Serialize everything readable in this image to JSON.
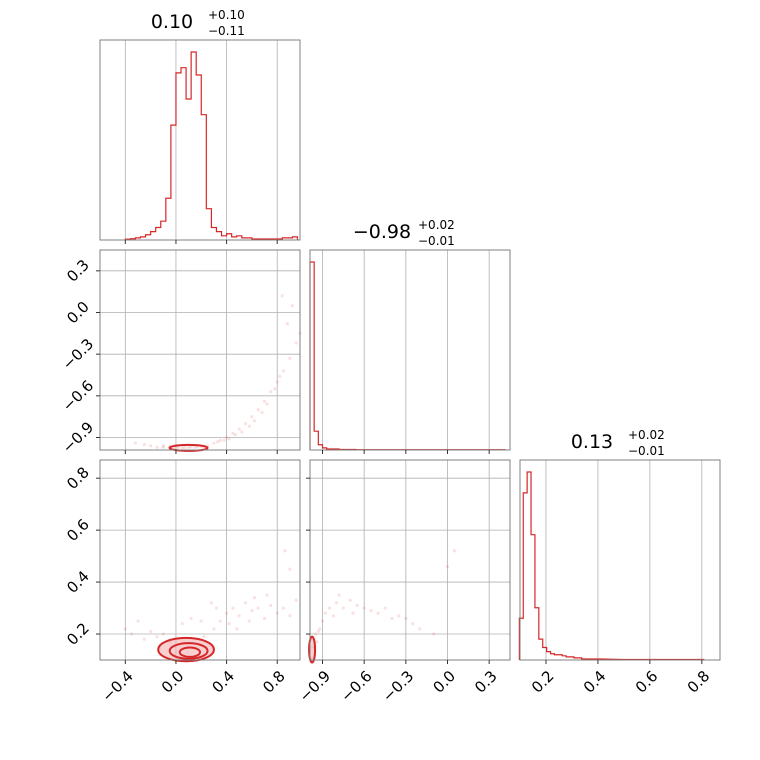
{
  "chart_data": [
    {
      "type": "histogram",
      "panel": "diag-1",
      "title": {
        "median": "0.10",
        "plus": "+0.10",
        "minus": "−0.11"
      },
      "xlim": [
        -0.6,
        0.98
      ],
      "xticks": [
        -0.4,
        0.0,
        0.4,
        0.8
      ],
      "bins": [
        {
          "x": -0.38,
          "count": 0.8
        },
        {
          "x": -0.34,
          "count": 1.2
        },
        {
          "x": -0.3,
          "count": 2.0
        },
        {
          "x": -0.26,
          "count": 3.0
        },
        {
          "x": -0.22,
          "count": 5.0
        },
        {
          "x": -0.18,
          "count": 8.0
        },
        {
          "x": -0.14,
          "count": 12.0
        },
        {
          "x": -0.1,
          "count": 18.0
        },
        {
          "x": -0.06,
          "count": 40.0
        },
        {
          "x": -0.02,
          "count": 110.0
        },
        {
          "x": 0.02,
          "count": 160.0
        },
        {
          "x": 0.06,
          "count": 165.0
        },
        {
          "x": 0.1,
          "count": 135.0
        },
        {
          "x": 0.14,
          "count": 180.0
        },
        {
          "x": 0.18,
          "count": 158.0
        },
        {
          "x": 0.22,
          "count": 120.0
        },
        {
          "x": 0.26,
          "count": 30.0
        },
        {
          "x": 0.3,
          "count": 12.0
        },
        {
          "x": 0.34,
          "count": 8.0
        },
        {
          "x": 0.38,
          "count": 4.0
        },
        {
          "x": 0.42,
          "count": 6.0
        },
        {
          "x": 0.46,
          "count": 3.0
        },
        {
          "x": 0.5,
          "count": 4.0
        },
        {
          "x": 0.54,
          "count": 2.0
        },
        {
          "x": 0.58,
          "count": 2.0
        },
        {
          "x": 0.62,
          "count": 1.0
        },
        {
          "x": 0.66,
          "count": 1.0
        },
        {
          "x": 0.7,
          "count": 1.0
        },
        {
          "x": 0.74,
          "count": 1.0
        },
        {
          "x": 0.78,
          "count": 1.0
        },
        {
          "x": 0.82,
          "count": 1.0
        },
        {
          "x": 0.86,
          "count": 2.0
        },
        {
          "x": 0.9,
          "count": 2.0
        },
        {
          "x": 0.94,
          "count": 3.0
        }
      ],
      "bin_width": 0.04
    },
    {
      "type": "scatter",
      "panel": "pair-2-1",
      "xlim": [
        -0.6,
        0.98
      ],
      "ylim": [
        -0.99,
        0.45
      ],
      "yticks": [
        -0.9,
        -0.6,
        -0.3,
        0.0,
        0.3
      ],
      "points": [
        [
          -0.32,
          -0.94
        ],
        [
          -0.25,
          -0.95
        ],
        [
          -0.2,
          -0.96
        ],
        [
          -0.15,
          -0.97
        ],
        [
          -0.1,
          -0.97
        ],
        [
          -0.05,
          -0.975
        ],
        [
          0.0,
          -0.975
        ],
        [
          0.05,
          -0.975
        ],
        [
          0.1,
          -0.97
        ],
        [
          0.15,
          -0.97
        ],
        [
          0.2,
          -0.965
        ],
        [
          0.25,
          -0.96
        ],
        [
          0.3,
          -0.94
        ],
        [
          0.35,
          -0.92
        ],
        [
          0.4,
          -0.9
        ],
        [
          0.45,
          -0.87
        ],
        [
          0.5,
          -0.84
        ],
        [
          0.55,
          -0.8
        ],
        [
          0.6,
          -0.75
        ],
        [
          0.65,
          -0.7
        ],
        [
          0.7,
          -0.64
        ],
        [
          0.75,
          -0.57
        ],
        [
          0.8,
          -0.5
        ],
        [
          0.85,
          -0.42
        ],
        [
          0.9,
          -0.33
        ],
        [
          0.95,
          -0.22
        ],
        [
          0.98,
          -0.15
        ],
        [
          0.88,
          -0.08
        ],
        [
          0.84,
          0.12
        ],
        [
          0.92,
          0.05
        ],
        [
          0.62,
          -0.78
        ],
        [
          0.58,
          -0.82
        ],
        [
          0.52,
          -0.86
        ],
        [
          0.47,
          -0.88
        ],
        [
          0.42,
          -0.91
        ],
        [
          0.38,
          -0.92
        ],
        [
          0.72,
          -0.66
        ],
        [
          0.78,
          -0.55
        ],
        [
          0.82,
          -0.46
        ],
        [
          0.68,
          -0.72
        ],
        [
          0.33,
          -0.93
        ],
        [
          -0.1,
          -0.96
        ],
        [
          -0.05,
          -0.965
        ],
        [
          0.02,
          -0.97
        ],
        [
          0.07,
          -0.972
        ],
        [
          0.12,
          -0.968
        ],
        [
          0.17,
          -0.968
        ],
        [
          0.22,
          -0.962
        ]
      ],
      "contour_x": [
        -0.05,
        0.25
      ],
      "contour_y": -0.975
    },
    {
      "type": "histogram",
      "panel": "diag-2",
      "title": {
        "median": "−0.98",
        "plus": "+0.02",
        "minus": "−0.01"
      },
      "xlim": [
        -0.99,
        0.45
      ],
      "xticks": [
        -0.9,
        -0.6,
        -0.3,
        0.0,
        0.3
      ],
      "bins": [
        {
          "x": -0.975,
          "count": 180
        },
        {
          "x": -0.945,
          "count": 18
        },
        {
          "x": -0.915,
          "count": 5
        },
        {
          "x": -0.885,
          "count": 2
        },
        {
          "x": -0.855,
          "count": 1
        },
        {
          "x": -0.825,
          "count": 1
        },
        {
          "x": -0.795,
          "count": 1
        },
        {
          "x": -0.765,
          "count": 0.5
        },
        {
          "x": -0.735,
          "count": 0.5
        },
        {
          "x": -0.705,
          "count": 0.5
        },
        {
          "x": -0.675,
          "count": 0.5
        },
        {
          "x": -0.645,
          "count": 0.3
        },
        {
          "x": -0.6,
          "count": 0.3
        },
        {
          "x": -0.5,
          "count": 0.3
        },
        {
          "x": -0.4,
          "count": 0.3
        },
        {
          "x": -0.3,
          "count": 0.3
        },
        {
          "x": -0.2,
          "count": 0.3
        },
        {
          "x": -0.1,
          "count": 0.3
        },
        {
          "x": 0.0,
          "count": 0.3
        },
        {
          "x": 0.1,
          "count": 0.3
        },
        {
          "x": 0.2,
          "count": 0.3
        },
        {
          "x": 0.3,
          "count": 0.3
        },
        {
          "x": 0.4,
          "count": 0.3
        }
      ],
      "bin_width": 0.03
    },
    {
      "type": "scatter",
      "panel": "pair-3-1",
      "xlim": [
        -0.6,
        0.98
      ],
      "ylim": [
        0.1,
        0.87
      ],
      "yticks": [
        0.2,
        0.4,
        0.6,
        0.8
      ],
      "points": [
        [
          -0.4,
          0.22
        ],
        [
          -0.35,
          0.2
        ],
        [
          -0.3,
          0.25
        ],
        [
          -0.25,
          0.18
        ],
        [
          -0.2,
          0.21
        ],
        [
          -0.15,
          0.19
        ],
        [
          -0.1,
          0.2
        ],
        [
          0.3,
          0.22
        ],
        [
          0.35,
          0.25
        ],
        [
          0.4,
          0.28
        ],
        [
          0.45,
          0.3
        ],
        [
          0.5,
          0.27
        ],
        [
          0.55,
          0.32
        ],
        [
          0.6,
          0.29
        ],
        [
          0.65,
          0.3
        ],
        [
          0.7,
          0.26
        ],
        [
          0.75,
          0.31
        ],
        [
          0.8,
          0.28
        ],
        [
          0.85,
          0.3
        ],
        [
          0.9,
          0.27
        ],
        [
          0.95,
          0.33
        ],
        [
          0.28,
          0.32
        ],
        [
          0.32,
          0.3
        ],
        [
          0.42,
          0.24
        ],
        [
          0.48,
          0.22
        ],
        [
          0.58,
          0.25
        ],
        [
          0.62,
          0.34
        ],
        [
          0.72,
          0.35
        ],
        [
          0.86,
          0.52
        ],
        [
          0.9,
          0.45
        ],
        [
          0.05,
          0.24
        ],
        [
          0.12,
          0.26
        ],
        [
          0.2,
          0.25
        ],
        [
          -0.05,
          0.17
        ],
        [
          0.22,
          0.19
        ]
      ],
      "contours": [
        {
          "cx": 0.08,
          "cy": 0.14,
          "rx": 0.22,
          "ry": 0.045
        },
        {
          "cx": 0.1,
          "cy": 0.135,
          "rx": 0.15,
          "ry": 0.03
        },
        {
          "cx": 0.11,
          "cy": 0.13,
          "rx": 0.08,
          "ry": 0.018
        }
      ],
      "xticks": [
        -0.4,
        0.0,
        0.4,
        0.8
      ]
    },
    {
      "type": "scatter",
      "panel": "pair-3-2",
      "xlim": [
        -0.99,
        0.45
      ],
      "ylim": [
        0.1,
        0.87
      ],
      "points": [
        [
          -0.95,
          0.2
        ],
        [
          -0.92,
          0.22
        ],
        [
          -0.9,
          0.25
        ],
        [
          -0.88,
          0.28
        ],
        [
          -0.85,
          0.3
        ],
        [
          -0.82,
          0.27
        ],
        [
          -0.8,
          0.32
        ],
        [
          -0.75,
          0.3
        ],
        [
          -0.7,
          0.33
        ],
        [
          -0.65,
          0.31
        ],
        [
          -0.6,
          0.3
        ],
        [
          -0.55,
          0.29
        ],
        [
          -0.5,
          0.28
        ],
        [
          -0.45,
          0.3
        ],
        [
          -0.4,
          0.26
        ],
        [
          -0.35,
          0.27
        ],
        [
          -0.3,
          0.26
        ],
        [
          -0.25,
          0.24
        ],
        [
          -0.2,
          0.22
        ],
        [
          -0.1,
          0.2
        ],
        [
          0.0,
          0.46
        ],
        [
          0.05,
          0.52
        ],
        [
          -0.97,
          0.15
        ],
        [
          -0.96,
          0.18
        ],
        [
          -0.94,
          0.17
        ],
        [
          -0.93,
          0.21
        ],
        [
          -0.78,
          0.35
        ],
        [
          -0.68,
          0.28
        ]
      ],
      "contour": {
        "cx": -0.975,
        "cy": 0.14,
        "rx": 0.012,
        "ry": 0.05
      },
      "xticks": [
        -0.9,
        -0.6,
        -0.3,
        0.0,
        0.3
      ]
    },
    {
      "type": "histogram",
      "panel": "diag-3",
      "title": {
        "median": "0.13",
        "plus": "+0.02",
        "minus": "−0.01"
      },
      "xlim": [
        0.1,
        0.87
      ],
      "xticks": [
        0.2,
        0.4,
        0.6,
        0.8
      ],
      "bins": [
        {
          "x": 0.105,
          "count": 40
        },
        {
          "x": 0.12,
          "count": 160
        },
        {
          "x": 0.135,
          "count": 180
        },
        {
          "x": 0.15,
          "count": 120
        },
        {
          "x": 0.165,
          "count": 50
        },
        {
          "x": 0.18,
          "count": 20
        },
        {
          "x": 0.195,
          "count": 12
        },
        {
          "x": 0.21,
          "count": 8
        },
        {
          "x": 0.225,
          "count": 6
        },
        {
          "x": 0.24,
          "count": 5
        },
        {
          "x": 0.255,
          "count": 5
        },
        {
          "x": 0.27,
          "count": 4
        },
        {
          "x": 0.285,
          "count": 3
        },
        {
          "x": 0.3,
          "count": 3
        },
        {
          "x": 0.315,
          "count": 2
        },
        {
          "x": 0.33,
          "count": 2
        },
        {
          "x": 0.345,
          "count": 1
        },
        {
          "x": 0.4,
          "count": 1
        },
        {
          "x": 0.5,
          "count": 0.5
        },
        {
          "x": 0.6,
          "count": 0.5
        },
        {
          "x": 0.7,
          "count": 0.5
        },
        {
          "x": 0.8,
          "count": 0.5
        }
      ],
      "bin_width": 0.015
    }
  ]
}
